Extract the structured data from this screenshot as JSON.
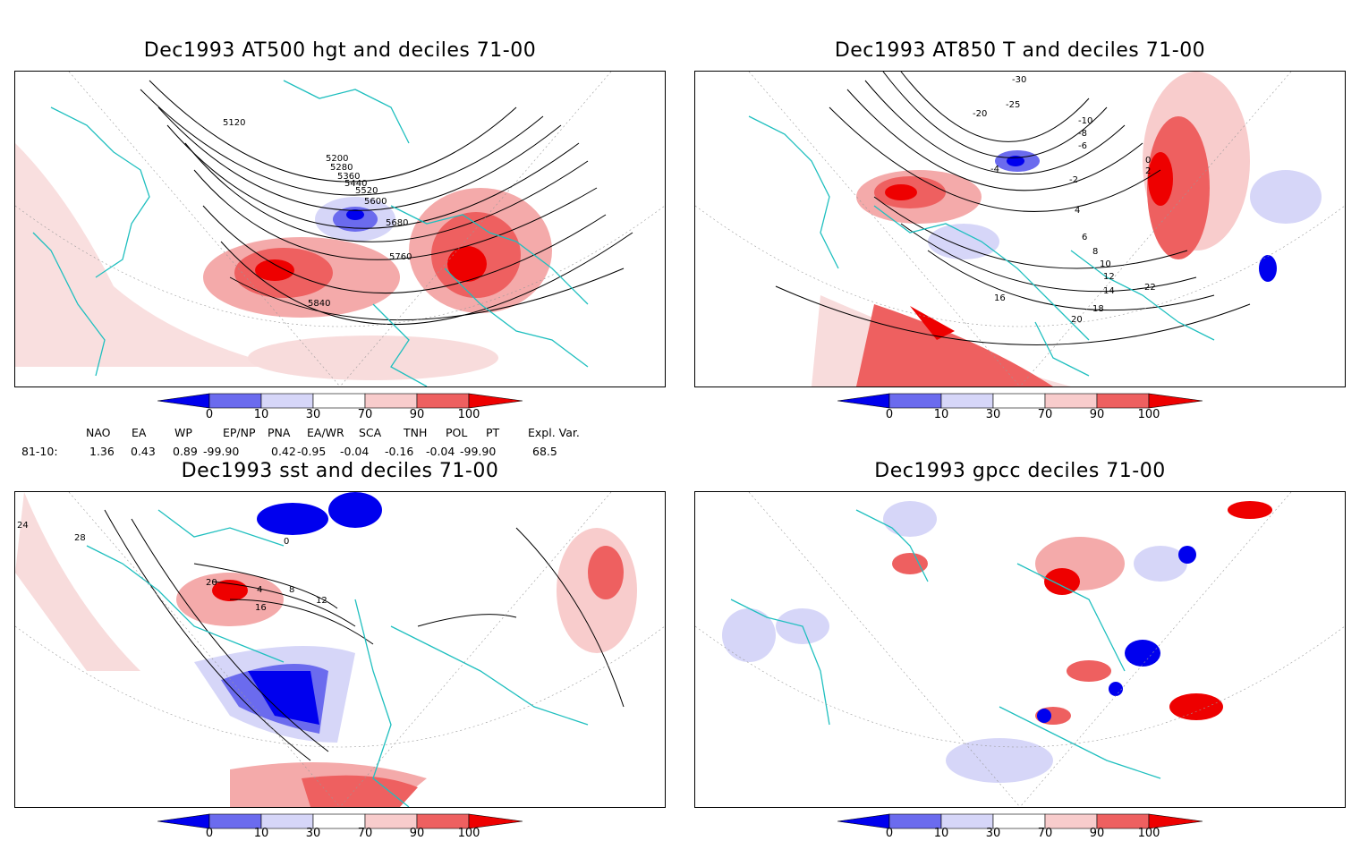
{
  "panels": [
    {
      "id": "p1",
      "title": "Dec1993 AT500 hgt and deciles 71-00",
      "contour_labels": [
        "5120",
        "5200",
        "5280",
        "5360",
        "5440",
        "5520",
        "5600",
        "5680",
        "5760",
        "5840"
      ]
    },
    {
      "id": "p2",
      "title": "Dec1993 AT850 T and deciles 71-00",
      "contour_labels": [
        "-30",
        "-25",
        "-20",
        "-10",
        "-8",
        "-6",
        "-4",
        "-2",
        "0",
        "2",
        "4",
        "6",
        "8",
        "10",
        "12",
        "14",
        "16",
        "18",
        "20",
        "22"
      ]
    },
    {
      "id": "p3",
      "title": "Dec1993 sst and deciles 71-00",
      "contour_labels": [
        "24",
        "28",
        "20",
        "0",
        "4",
        "8",
        "12",
        "16"
      ]
    },
    {
      "id": "p4",
      "title": "Dec1993 gpcc deciles 71-00",
      "contour_labels": []
    }
  ],
  "colorbar": {
    "ticks": [
      "0",
      "10",
      "30",
      "70",
      "90",
      "100"
    ],
    "colors": {
      "dark_blue": "#0000ee",
      "mid_blue": "#6b6bee",
      "light_blue": "#d6d6f8",
      "white": "#ffffff",
      "light_red": "#f8cccc",
      "mid_red": "#ee6060",
      "dark_red": "#ee0000"
    }
  },
  "indices": {
    "headers": [
      "NAO",
      "EA",
      "WP",
      "EP/NP",
      "PNA",
      "EA/WR",
      "SCA",
      "TNH",
      "POL",
      "PT",
      "Expl. Var."
    ],
    "row_label": "81-10:",
    "values": [
      "1.36",
      "0.43",
      "0.89",
      "-99.90",
      "0.42",
      "-0.95",
      "-0.04",
      "-0.16",
      "-0.04",
      "-99.90",
      "68.5"
    ]
  },
  "map_colors": {
    "coast": "#1fbfbf",
    "contour": "#000000"
  }
}
